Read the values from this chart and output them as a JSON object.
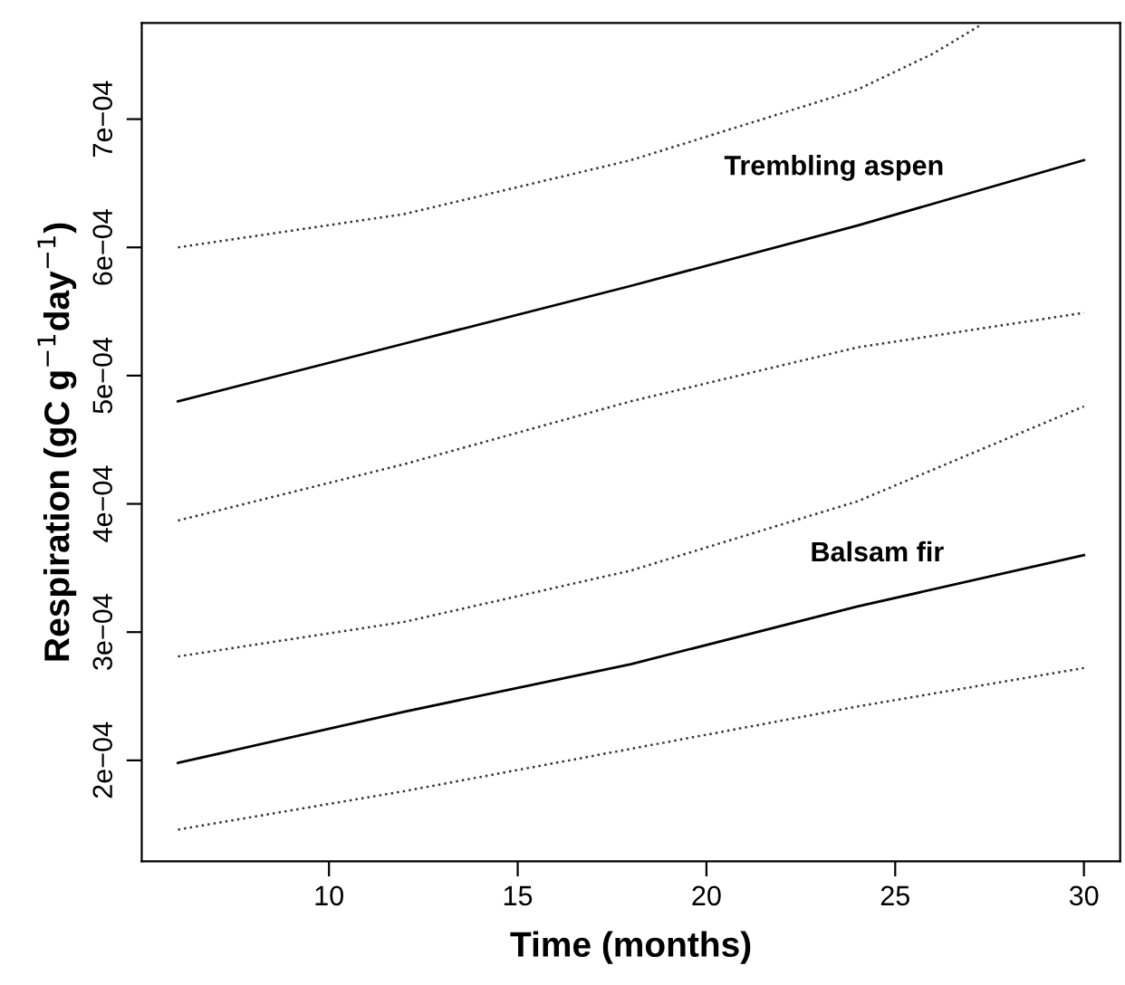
{
  "chart_data": {
    "type": "line",
    "xlabel": "Time (months)",
    "ylabel": "Respiration (gC g$^{−1}$day$^{−1}$)",
    "xlim": [
      5.04,
      30.96
    ],
    "ylim": [
      0.0001213,
      0.000775
    ],
    "xticks": [
      10,
      15,
      20,
      25,
      30
    ],
    "yticks": [
      {
        "value": 0.0002,
        "label": "2e−04"
      },
      {
        "value": 0.0003,
        "label": "3e−04"
      },
      {
        "value": 0.0004,
        "label": "4e−04"
      },
      {
        "value": 0.0005,
        "label": "5e−04"
      },
      {
        "value": 0.0006,
        "label": "6e−04"
      },
      {
        "value": 0.0007,
        "label": "7e−04"
      }
    ],
    "grid": false,
    "legend": false,
    "marker": "none",
    "series": [
      {
        "name": "Trembling aspen",
        "color": "#000000",
        "line_style": "solid",
        "x": [
          6,
          12,
          18,
          24,
          30
        ],
        "values": [
          0.00048,
          0.000525,
          0.00057,
          0.000617,
          0.000668
        ]
      },
      {
        "color": "#333333",
        "line_style": "dotted",
        "x": [
          6,
          12,
          18,
          24,
          26,
          27.3
        ],
        "values": [
          0.0006,
          0.000626,
          0.000668,
          0.000723,
          0.000751,
          0.000774
        ]
      },
      {
        "color": "#333333",
        "line_style": "dotted",
        "x": [
          6,
          12,
          18,
          24,
          30
        ],
        "values": [
          0.000387,
          0.000431,
          0.00048,
          0.000522,
          0.000549
        ]
      },
      {
        "name": "Balsam fir",
        "color": "#000000",
        "line_style": "solid",
        "x": [
          6,
          12,
          18,
          24,
          30
        ],
        "values": [
          0.000198,
          0.000238,
          0.000275,
          0.00032,
          0.00036
        ]
      },
      {
        "color": "#333333",
        "line_style": "dotted",
        "x": [
          6,
          12,
          18,
          24,
          30
        ],
        "values": [
          0.000281,
          0.000308,
          0.000348,
          0.000402,
          0.000476
        ]
      },
      {
        "color": "#333333",
        "line_style": "dotted",
        "x": [
          6,
          12,
          18,
          24,
          30
        ],
        "values": [
          0.000146,
          0.000176,
          0.000209,
          0.000242,
          0.000272
        ]
      }
    ]
  }
}
